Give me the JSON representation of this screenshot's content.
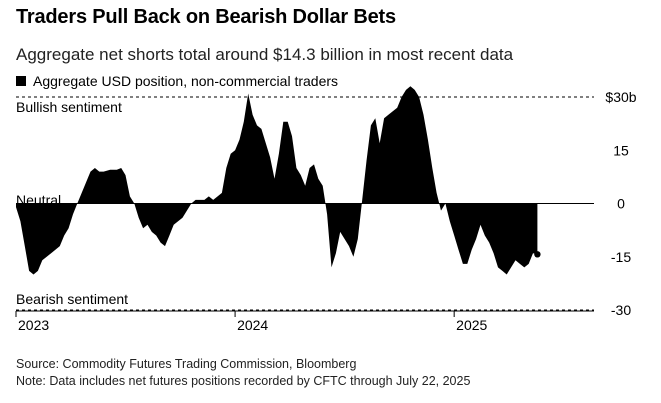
{
  "header": {
    "title": "Traders Pull Back on Bearish Dollar Bets",
    "subtitle": "Aggregate net shorts total around $14.3 billion in most recent data"
  },
  "legend": {
    "label": "Aggregate USD position, non-commercial traders",
    "color": "#000000"
  },
  "annotations": {
    "bullish": "Bullish sentiment",
    "neutral": "Neutral",
    "bearish": "Bearish sentiment"
  },
  "footer": {
    "source": "Source: Commodity Futures Trading Commission, Bloomberg",
    "note": "Note: Data includes net futures positions recorded by CFTC through July 22, 2025"
  },
  "chart_data": {
    "type": "area",
    "title": "Traders Pull Back on Bearish Dollar Bets",
    "series": [
      {
        "name": "Aggregate USD position, non-commercial traders",
        "color": "#000000"
      }
    ],
    "ylim": [
      -30,
      30
    ],
    "yticks": [
      30,
      15,
      0,
      -15,
      -30
    ],
    "ytick_labels": [
      "$30b",
      "15",
      "0",
      "-15",
      "-30"
    ],
    "grid": "dashed lines at $30b and -30, solid line at 0",
    "xlim": [
      2023.0,
      2025.62
    ],
    "xticks": [
      2023,
      2024,
      2025
    ],
    "xtick_labels": [
      "2023",
      "2024",
      "2025"
    ],
    "last_value": -14.3,
    "points": [
      [
        2023.0,
        -1
      ],
      [
        2023.02,
        -5
      ],
      [
        2023.04,
        -12
      ],
      [
        2023.06,
        -19
      ],
      [
        2023.08,
        -20
      ],
      [
        2023.1,
        -19
      ],
      [
        2023.12,
        -16
      ],
      [
        2023.14,
        -15
      ],
      [
        2023.16,
        -14
      ],
      [
        2023.18,
        -13
      ],
      [
        2023.2,
        -12
      ],
      [
        2023.22,
        -9
      ],
      [
        2023.24,
        -7
      ],
      [
        2023.26,
        -3
      ],
      [
        2023.28,
        0
      ],
      [
        2023.3,
        3
      ],
      [
        2023.32,
        6
      ],
      [
        2023.34,
        9
      ],
      [
        2023.36,
        10
      ],
      [
        2023.38,
        9
      ],
      [
        2023.4,
        9
      ],
      [
        2023.43,
        9.5
      ],
      [
        2023.46,
        9.5
      ],
      [
        2023.48,
        10
      ],
      [
        2023.5,
        8
      ],
      [
        2023.52,
        2
      ],
      [
        2023.54,
        0
      ],
      [
        2023.56,
        -4
      ],
      [
        2023.58,
        -7
      ],
      [
        2023.6,
        -6
      ],
      [
        2023.62,
        -8
      ],
      [
        2023.64,
        -9
      ],
      [
        2023.66,
        -11
      ],
      [
        2023.68,
        -12
      ],
      [
        2023.7,
        -9
      ],
      [
        2023.72,
        -6
      ],
      [
        2023.74,
        -5
      ],
      [
        2023.76,
        -4
      ],
      [
        2023.78,
        -2
      ],
      [
        2023.8,
        0
      ],
      [
        2023.82,
        1
      ],
      [
        2023.84,
        1
      ],
      [
        2023.86,
        1
      ],
      [
        2023.88,
        2
      ],
      [
        2023.9,
        1
      ],
      [
        2023.92,
        2
      ],
      [
        2023.94,
        3
      ],
      [
        2023.96,
        10
      ],
      [
        2023.98,
        14
      ],
      [
        2024.0,
        15
      ],
      [
        2024.02,
        18
      ],
      [
        2024.04,
        23
      ],
      [
        2024.06,
        31
      ],
      [
        2024.08,
        25
      ],
      [
        2024.1,
        22
      ],
      [
        2024.12,
        21
      ],
      [
        2024.14,
        17
      ],
      [
        2024.16,
        13
      ],
      [
        2024.18,
        7
      ],
      [
        2024.2,
        14
      ],
      [
        2024.22,
        23
      ],
      [
        2024.24,
        23
      ],
      [
        2024.26,
        19
      ],
      [
        2024.28,
        10
      ],
      [
        2024.3,
        8
      ],
      [
        2024.32,
        5
      ],
      [
        2024.34,
        10
      ],
      [
        2024.36,
        11
      ],
      [
        2024.38,
        7
      ],
      [
        2024.4,
        5
      ],
      [
        2024.42,
        -3
      ],
      [
        2024.44,
        -18
      ],
      [
        2024.46,
        -14
      ],
      [
        2024.48,
        -8
      ],
      [
        2024.5,
        -10
      ],
      [
        2024.52,
        -12
      ],
      [
        2024.54,
        -15
      ],
      [
        2024.56,
        -10
      ],
      [
        2024.58,
        1
      ],
      [
        2024.6,
        12
      ],
      [
        2024.62,
        22
      ],
      [
        2024.64,
        24
      ],
      [
        2024.66,
        17
      ],
      [
        2024.68,
        24
      ],
      [
        2024.7,
        25
      ],
      [
        2024.72,
        26
      ],
      [
        2024.74,
        27
      ],
      [
        2024.76,
        30
      ],
      [
        2024.78,
        32
      ],
      [
        2024.8,
        33
      ],
      [
        2024.82,
        32
      ],
      [
        2024.84,
        30
      ],
      [
        2024.86,
        25
      ],
      [
        2024.88,
        18
      ],
      [
        2024.9,
        10
      ],
      [
        2024.92,
        3
      ],
      [
        2024.94,
        -2
      ],
      [
        2024.96,
        0
      ],
      [
        2024.98,
        -5
      ],
      [
        2025.0,
        -9
      ],
      [
        2025.02,
        -13
      ],
      [
        2025.04,
        -17
      ],
      [
        2025.06,
        -17
      ],
      [
        2025.08,
        -13
      ],
      [
        2025.1,
        -10
      ],
      [
        2025.12,
        -6
      ],
      [
        2025.14,
        -9
      ],
      [
        2025.16,
        -11
      ],
      [
        2025.18,
        -14
      ],
      [
        2025.2,
        -18
      ],
      [
        2025.22,
        -19
      ],
      [
        2025.24,
        -20
      ],
      [
        2025.26,
        -18
      ],
      [
        2025.28,
        -16
      ],
      [
        2025.3,
        -17
      ],
      [
        2025.32,
        -18
      ],
      [
        2025.34,
        -17
      ],
      [
        2025.36,
        -14
      ],
      [
        2025.38,
        -14.3
      ]
    ]
  }
}
